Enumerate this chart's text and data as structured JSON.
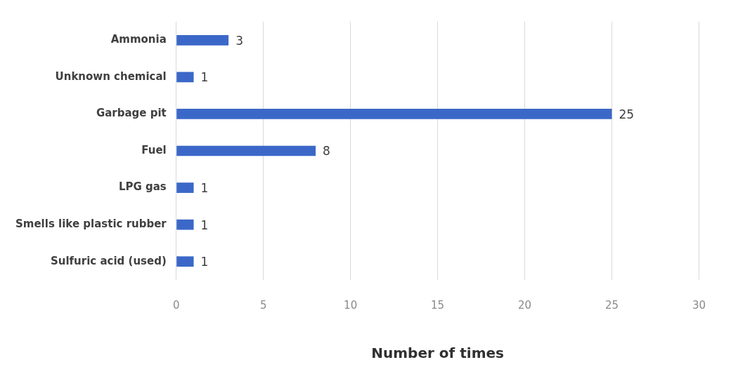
{
  "chart_data": {
    "type": "bar",
    "orientation": "horizontal",
    "xlabel": "Number of times",
    "categories": [
      "Ammonia",
      "Unknown chemical",
      "Garbage pit",
      "Fuel",
      "LPG gas",
      "Smells like plastic rubber",
      "Sulfuric acid (used)"
    ],
    "values": [
      3,
      1,
      25,
      8,
      1,
      1,
      1
    ],
    "color": "#3b68c8",
    "xlim": [
      0,
      30
    ],
    "xticks": [
      0,
      5,
      10,
      15,
      20,
      25,
      30
    ],
    "grid": "x",
    "data_labels": true,
    "legend": false
  }
}
